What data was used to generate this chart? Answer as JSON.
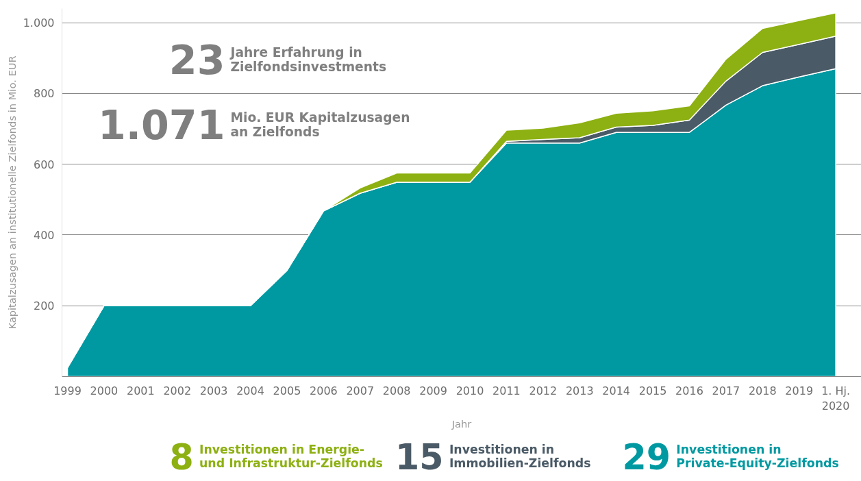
{
  "chart_data": {
    "type": "area",
    "stacked": true,
    "xlabel": "Jahr",
    "ylabel": "Kapitalzusagen an institutionelle Zielfonds in Mio. EUR",
    "categories": [
      "1999",
      "2000",
      "2001",
      "2002",
      "2003",
      "2004",
      "2005",
      "2006",
      "2007",
      "2008",
      "2009",
      "2010",
      "2011",
      "2012",
      "2013",
      "2014",
      "2015",
      "2016",
      "2017",
      "2018",
      "2019",
      "1. Hj.\n2020"
    ],
    "series": [
      {
        "name": "Investitionen in\nPrivate-Equity-Zielfonds",
        "color": "#0099a1",
        "values": [
          25,
          200,
          200,
          200,
          200,
          200,
          300,
          468,
          518,
          549,
          549,
          549,
          660,
          660,
          660,
          690,
          690,
          690,
          767,
          822,
          847,
          870
        ]
      },
      {
        "name": "Investitionen in\nImmobilien-Zielfonds",
        "color": "#4a5a66",
        "values": [
          0,
          0,
          0,
          0,
          0,
          0,
          0,
          0,
          0,
          0,
          0,
          0,
          5,
          10,
          15,
          15,
          20,
          35,
          68,
          94,
          92,
          92
        ]
      },
      {
        "name": "Investitionen in Energie-\nund Infrastruktur-Zielfonds",
        "color": "#8db012",
        "values": [
          0,
          0,
          0,
          0,
          0,
          0,
          0,
          0,
          15,
          26,
          26,
          26,
          31,
          32,
          42,
          39,
          41,
          40,
          62,
          68,
          67,
          66
        ]
      }
    ],
    "ylim": [
      0,
      1040
    ],
    "yticks": [
      200,
      400,
      600,
      800,
      {
        "value": 1000,
        "label": "1.000"
      }
    ],
    "grid": "y",
    "annotations": [
      "23",
      "Jahre Erfahrung in\nZielfondsinvestments",
      "1.071",
      "Mio. EUR Kapitalzusagen\nan Zielfonds",
      "8",
      "15",
      "29"
    ]
  }
}
